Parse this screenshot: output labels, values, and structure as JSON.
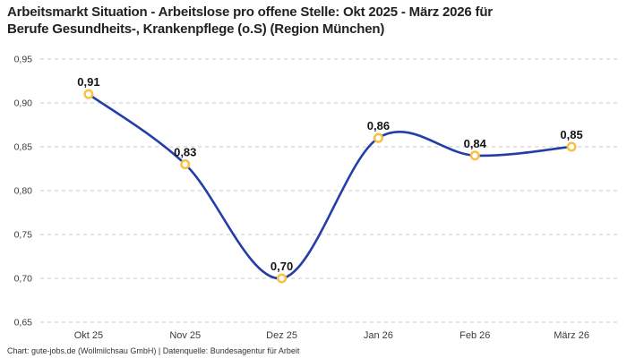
{
  "title": {
    "line1": "Arbeitsmarkt Situation - Arbeitslose pro offene Stelle: Okt 2025 - März 2026 für",
    "line2": "Berufe Gesundheits-, Krankenpflege (o.S) (Region München)"
  },
  "footer": "Chart: gute-jobs.de (Wollmilchsau GmbH) | Datenquelle: Bundesagentur für Arbeit",
  "chart_data": {
    "type": "line",
    "title": "Arbeitsmarkt Situation - Arbeitslose pro offene Stelle: Okt 2025 - März 2026 für Berufe Gesundheits-, Krankenpflege (o.S) (Region München)",
    "categories": [
      "Okt 25",
      "Nov 25",
      "Dez 25",
      "Jan 26",
      "Feb 26",
      "März 26"
    ],
    "values": [
      0.91,
      0.83,
      0.7,
      0.86,
      0.84,
      0.85
    ],
    "data_labels": [
      "0,91",
      "0,83",
      "0,70",
      "0,86",
      "0,84",
      "0,85"
    ],
    "y_ticks": [
      {
        "value": 0.95,
        "label": "0,95"
      },
      {
        "value": 0.9,
        "label": "0,90"
      },
      {
        "value": 0.85,
        "label": "0,85"
      },
      {
        "value": 0.8,
        "label": "0,80"
      },
      {
        "value": 0.75,
        "label": "0,75"
      },
      {
        "value": 0.7,
        "label": "0,70"
      },
      {
        "value": 0.65,
        "label": "0,65"
      }
    ],
    "ylim": [
      0.65,
      0.95
    ],
    "xlabel": "",
    "ylabel": "",
    "grid": "horizontal-dashed",
    "legend": "none",
    "line_style": "smooth-spline",
    "colors": {
      "line": "#233ea8",
      "marker_ring": "#f7c244",
      "marker_fill": "#ffffff",
      "grid": "#c9c9c9",
      "tick_text": "#3c3c3c",
      "data_label_text": "#141414"
    }
  }
}
